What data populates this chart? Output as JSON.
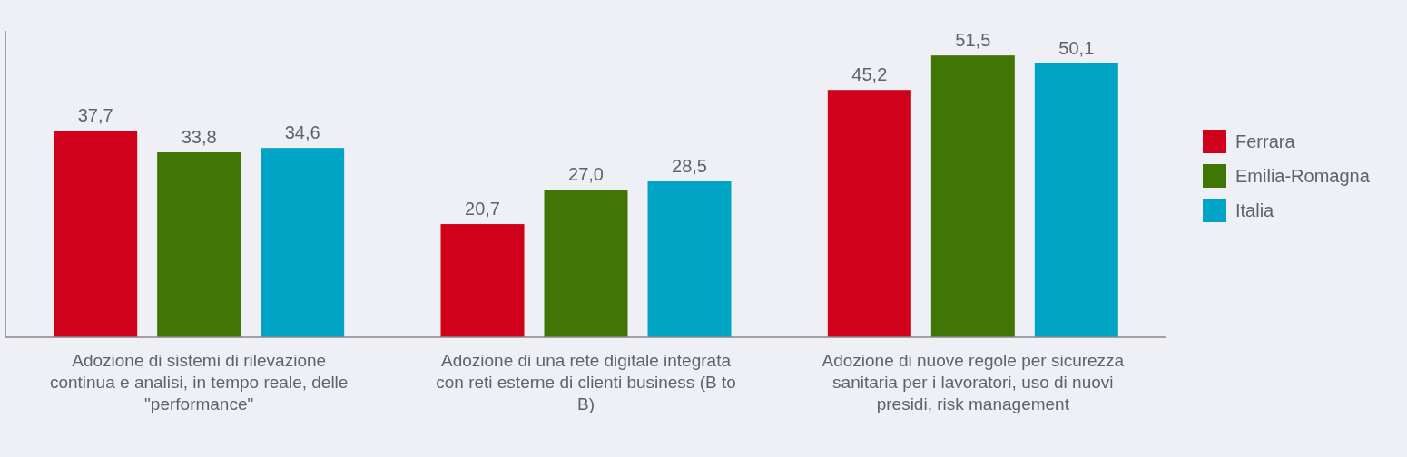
{
  "chart_data": {
    "type": "bar",
    "categories": [
      "Adozione di sistemi di rilevazione continua e analisi, in tempo reale, delle \"performance\"",
      "Adozione di una rete digitale integrata con reti esterne di clienti business (B to B)",
      "Adozione di nuove regole per sicurezza sanitaria per i lavoratori, uso di nuovi presidi, risk management"
    ],
    "series": [
      {
        "name": "Ferrara",
        "color": "#d0021b",
        "values": [
          37.7,
          20.7,
          45.2
        ],
        "value_labels": [
          "37,7",
          "20,7",
          "45,2"
        ]
      },
      {
        "name": "Emilia-Romagna",
        "color": "#417505",
        "values": [
          33.8,
          27.0,
          51.5
        ],
        "value_labels": [
          "33,8",
          "27,0",
          "51,5"
        ]
      },
      {
        "name": "Italia",
        "color": "#00a4c4",
        "values": [
          34.6,
          28.5,
          50.1
        ],
        "value_labels": [
          "34,6",
          "28,5",
          "50,1"
        ]
      }
    ],
    "ylim": [
      0,
      56
    ],
    "legend": "right",
    "tick_labels": "x"
  }
}
